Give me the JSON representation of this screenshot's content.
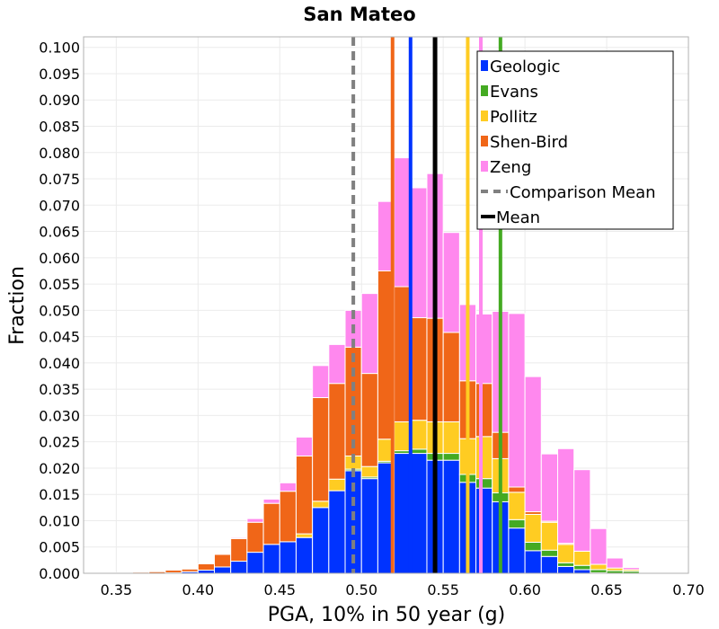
{
  "chart_data": {
    "type": "bar",
    "stacked": true,
    "title": "San Mateo",
    "xlabel": "PGA, 10% in 50 year (g)",
    "ylabel": "Fraction",
    "xlim": [
      0.33,
      0.7
    ],
    "ylim": [
      0.0,
      0.102
    ],
    "xticks": [
      "0.35",
      "0.40",
      "0.45",
      "0.50",
      "0.55",
      "0.60",
      "0.65",
      "0.70"
    ],
    "xtick_values": [
      0.35,
      0.4,
      0.45,
      0.5,
      0.55,
      0.6,
      0.65,
      0.7
    ],
    "yticks": [
      "0.000",
      "0.005",
      "0.010",
      "0.015",
      "0.020",
      "0.025",
      "0.030",
      "0.035",
      "0.040",
      "0.045",
      "0.050",
      "0.055",
      "0.060",
      "0.065",
      "0.070",
      "0.075",
      "0.080",
      "0.085",
      "0.090",
      "0.095",
      "0.100"
    ],
    "ytick_values": [
      0.0,
      0.005,
      0.01,
      0.015,
      0.02,
      0.025,
      0.03,
      0.035,
      0.04,
      0.045,
      0.05,
      0.055,
      0.06,
      0.065,
      0.07,
      0.075,
      0.08,
      0.085,
      0.09,
      0.095,
      0.1
    ],
    "grid": true,
    "legend_position": "top-right",
    "bin_width": 0.01,
    "bin_centers": [
      0.345,
      0.355,
      0.365,
      0.375,
      0.385,
      0.395,
      0.405,
      0.415,
      0.425,
      0.435,
      0.445,
      0.455,
      0.465,
      0.475,
      0.485,
      0.495,
      0.505,
      0.515,
      0.525,
      0.535,
      0.545,
      0.555,
      0.565,
      0.575,
      0.585,
      0.595,
      0.605,
      0.615,
      0.625,
      0.635,
      0.645,
      0.655,
      0.665,
      0.675,
      0.685
    ],
    "series": [
      {
        "name": "Geologic",
        "color": "#0033ff",
        "values": [
          0,
          0,
          0,
          0,
          0.0001,
          0.0003,
          0.0006,
          0.0012,
          0.0023,
          0.004,
          0.0055,
          0.006,
          0.0068,
          0.0125,
          0.0157,
          0.0195,
          0.018,
          0.021,
          0.0228,
          0.0228,
          0.0215,
          0.0215,
          0.0173,
          0.0162,
          0.0136,
          0.0086,
          0.0043,
          0.0032,
          0.0013,
          0.0007,
          0.0001,
          0,
          0,
          0,
          0
        ]
      },
      {
        "name": "Evans",
        "color": "#44aa22",
        "values": [
          0,
          0,
          0,
          0,
          0,
          0,
          0,
          0,
          0,
          0,
          0,
          0,
          0,
          0,
          0,
          0.0003,
          0.0003,
          0.0003,
          0.0005,
          0.0008,
          0.0013,
          0.0013,
          0.0015,
          0.0018,
          0.0017,
          0.0016,
          0.0016,
          0.0012,
          0.0007,
          0.0008,
          0.0006,
          0.0005,
          0.0004,
          0.0001,
          0.0001
        ]
      },
      {
        "name": "Pollitz",
        "color": "#ffcc22",
        "values": [
          0,
          0,
          0,
          0,
          0,
          0,
          0,
          0,
          0,
          0,
          0,
          0,
          0.0007,
          0.0012,
          0.0022,
          0.0025,
          0.002,
          0.0042,
          0.0055,
          0.0055,
          0.006,
          0.006,
          0.0068,
          0.008,
          0.0065,
          0.0052,
          0.0053,
          0.0053,
          0.0035,
          0.0027,
          0.001,
          0.0005,
          0.0003,
          0.0001,
          0
        ]
      },
      {
        "name": "Shen-Bird",
        "color": "#f06618",
        "values": [
          0.0001,
          0.0001,
          0.0002,
          0.0003,
          0.0005,
          0.0005,
          0.0012,
          0.0024,
          0.0043,
          0.0057,
          0.0078,
          0.0096,
          0.0148,
          0.0197,
          0.0182,
          0.0207,
          0.0177,
          0.032,
          0.0257,
          0.0195,
          0.0197,
          0.017,
          0.011,
          0.0101,
          0.005,
          0.001,
          0.0005,
          0.0002,
          0.0002,
          0,
          0,
          0,
          0,
          0,
          0
        ]
      },
      {
        "name": "Zeng",
        "color": "#ff88ee",
        "values": [
          0,
          0,
          0,
          0,
          0,
          0,
          0,
          0.0001,
          0.0002,
          0.0007,
          0.0008,
          0.0016,
          0.0036,
          0.0061,
          0.0074,
          0.007,
          0.0152,
          0.0132,
          0.0245,
          0.0247,
          0.0275,
          0.019,
          0.0145,
          0.0132,
          0.023,
          0.033,
          0.0257,
          0.0128,
          0.018,
          0.0155,
          0.0068,
          0.0019,
          0.0004,
          0.0001,
          0
        ]
      }
    ],
    "vertical_lines": [
      {
        "name": "Comparison Mean",
        "x": 0.495,
        "color": "#808080",
        "style": "dashed"
      },
      {
        "name": "Mean",
        "x": 0.545,
        "color": "#000000",
        "style": "solid"
      },
      {
        "name": "Geologic",
        "x": 0.53,
        "color": "#0033ff",
        "style": "solid"
      },
      {
        "name": "Evans",
        "x": 0.585,
        "color": "#44aa22",
        "style": "solid"
      },
      {
        "name": "Pollitz",
        "x": 0.565,
        "color": "#ffcc22",
        "style": "solid"
      },
      {
        "name": "Shen-Bird",
        "x": 0.519,
        "color": "#f06618",
        "style": "solid"
      },
      {
        "name": "Zeng",
        "x": 0.573,
        "color": "#ff88ee",
        "style": "solid"
      }
    ],
    "legend": [
      {
        "label": "Geologic",
        "color": "#0033ff",
        "kind": "patch"
      },
      {
        "label": "Evans",
        "color": "#44aa22",
        "kind": "patch"
      },
      {
        "label": "Pollitz",
        "color": "#ffcc22",
        "kind": "patch"
      },
      {
        "label": "Shen-Bird",
        "color": "#f06618",
        "kind": "patch"
      },
      {
        "label": "Zeng",
        "color": "#ff88ee",
        "kind": "patch"
      },
      {
        "label": "Comparison Mean",
        "color": "#808080",
        "kind": "dashed-line"
      },
      {
        "label": "Mean",
        "color": "#000000",
        "kind": "line"
      }
    ]
  }
}
